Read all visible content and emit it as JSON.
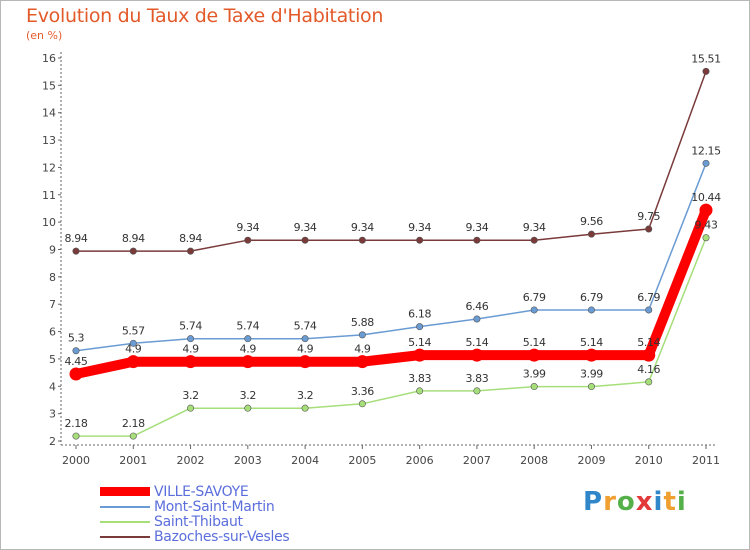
{
  "header": {
    "title": "Evolution du Taux de Taxe d'Habitation",
    "unit": "(en %)"
  },
  "chart_data": {
    "type": "line",
    "title": "Evolution du Taux de Taxe d'Habitation",
    "ylabel": "(en %)",
    "xlabel": "",
    "ylim": [
      2,
      16
    ],
    "yticks": [
      "2",
      "3",
      "4",
      "5",
      "6",
      "7",
      "8",
      "9",
      "10",
      "11",
      "12",
      "13",
      "14",
      "15",
      "16"
    ],
    "x": [
      "2000",
      "2001",
      "2002",
      "2003",
      "2004",
      "2005",
      "2006",
      "2007",
      "2008",
      "2009",
      "2010",
      "2011"
    ],
    "grid": false,
    "legend": "bottom-left",
    "series": [
      {
        "name": "VILLE-SAVOYE",
        "color": "#ff0000",
        "values": [
          4.45,
          4.9,
          4.9,
          4.9,
          4.9,
          4.9,
          5.14,
          5.14,
          5.14,
          5.14,
          5.14,
          10.44
        ],
        "labels": [
          "4.45",
          "4.9",
          "4.9",
          "4.9",
          "4.9",
          "4.9",
          "5.14",
          "5.14",
          "5.14",
          "5.14",
          "5.14",
          "10.44"
        ]
      },
      {
        "name": "Mont-Saint-Martin",
        "color": "#6a9bd3",
        "values": [
          5.3,
          5.57,
          5.74,
          5.74,
          5.74,
          5.88,
          6.18,
          6.46,
          6.79,
          6.79,
          6.79,
          12.15
        ],
        "labels": [
          "5.3",
          "5.57",
          "5.74",
          "5.74",
          "5.74",
          "5.88",
          "6.18",
          "6.46",
          "6.79",
          "6.79",
          "6.79",
          "12.15"
        ]
      },
      {
        "name": "Saint-Thibaut",
        "color": "#a6de7a",
        "values": [
          2.18,
          2.18,
          3.2,
          3.2,
          3.2,
          3.36,
          3.83,
          3.83,
          3.99,
          3.99,
          4.16,
          9.43
        ],
        "labels": [
          "2.18",
          "2.18",
          "3.2",
          "3.2",
          "3.2",
          "3.36",
          "3.83",
          "3.83",
          "3.99",
          "3.99",
          "4.16",
          "9.43"
        ]
      },
      {
        "name": "Bazoches-sur-Vesles",
        "color": "#7a3a3a",
        "values": [
          8.94,
          8.94,
          8.94,
          9.34,
          9.34,
          9.34,
          9.34,
          9.34,
          9.34,
          9.56,
          9.75,
          15.51
        ],
        "labels": [
          "8.94",
          "8.94",
          "8.94",
          "9.34",
          "9.34",
          "9.34",
          "9.34",
          "9.34",
          "9.34",
          "9.56",
          "9.75",
          "15.51"
        ]
      }
    ]
  },
  "logo": {
    "letters": [
      "P",
      "r",
      "o",
      "x",
      "i",
      "t",
      "i"
    ],
    "colors": [
      "#2f86c9",
      "#f0a030",
      "#56b04a",
      "#e23a3a",
      "#2f86c9",
      "#f0a030",
      "#56b04a"
    ]
  }
}
